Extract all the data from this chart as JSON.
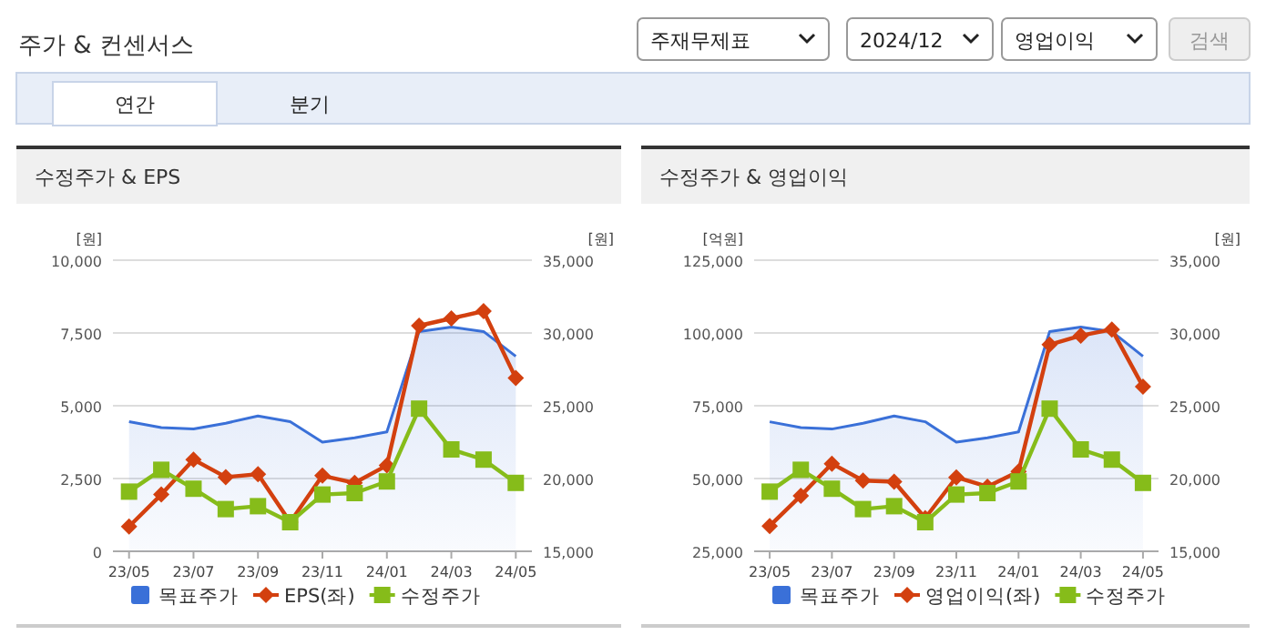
{
  "chart_data": [
    {
      "type": "line",
      "title": "수정주가 & EPS",
      "ylabel": "[원]",
      "y2label": "[원]",
      "annotations": [
        "주가 & 컨센서스",
        "주재무제표",
        "2024/12",
        "영업이익",
        "검색",
        "연간",
        "분기"
      ],
      "categories": [
        "23/05",
        null,
        "23/07",
        null,
        "23/09",
        null,
        "23/11",
        null,
        "24/01",
        null,
        "24/03",
        null,
        "24/05"
      ],
      "ylim": [
        0,
        10000
      ],
      "yticks": [
        {
          "value": 0,
          "label": "0"
        },
        {
          "value": 2500,
          "label": "2,500"
        },
        {
          "value": 5000,
          "label": "5,000"
        },
        {
          "value": 7500,
          "label": "7,500"
        },
        {
          "value": 10000,
          "label": "10,000"
        }
      ],
      "y2lim": [
        15000,
        35000
      ],
      "y2ticks": [
        {
          "value": 15000,
          "label": "15,000"
        },
        {
          "value": 20000,
          "label": "20,000"
        },
        {
          "value": 25000,
          "label": "25,000"
        },
        {
          "value": 30000,
          "label": "30,000"
        },
        {
          "value": 35000,
          "label": "35,000"
        }
      ],
      "grid": "y",
      "legend": "bottom",
      "series": [
        {
          "name": "목표주가",
          "type": "area",
          "axis": "y2",
          "color": "#3a70d8",
          "marker": "none",
          "values": [
            23900,
            23500,
            23400,
            23800,
            24300,
            23900,
            22500,
            22800,
            23200,
            30100,
            30400,
            30100,
            28400
          ]
        },
        {
          "name": "EPS(좌)",
          "color": "#d3400f",
          "marker": "diamond",
          "values": [
            850,
            1950,
            3150,
            2550,
            2650,
            1000,
            2600,
            2350,
            2950,
            7750,
            8000,
            8250,
            5950
          ]
        },
        {
          "name": "수정주가",
          "axis": "y2",
          "color": "#86bc1a",
          "marker": "square",
          "values": [
            19100,
            20600,
            19300,
            17900,
            18100,
            17000,
            18900,
            19000,
            19800,
            24800,
            22000,
            21300,
            19700
          ]
        }
      ]
    },
    {
      "type": "line",
      "title": "수정주가 & 영업이익",
      "ylabel": "[억원]",
      "y2label": "[원]",
      "categories": [
        "23/05",
        null,
        "23/07",
        null,
        "23/09",
        null,
        "23/11",
        null,
        "24/01",
        null,
        "24/03",
        null,
        "24/05"
      ],
      "ylim": [
        25000,
        125000
      ],
      "yticks": [
        {
          "value": 25000,
          "label": "25,000"
        },
        {
          "value": 50000,
          "label": "50,000"
        },
        {
          "value": 75000,
          "label": "75,000"
        },
        {
          "value": 100000,
          "label": "100,000"
        },
        {
          "value": 125000,
          "label": "125,000"
        }
      ],
      "y2lim": [
        15000,
        35000
      ],
      "y2ticks": [
        {
          "value": 15000,
          "label": "15,000"
        },
        {
          "value": 20000,
          "label": "20,000"
        },
        {
          "value": 25000,
          "label": "25,000"
        },
        {
          "value": 30000,
          "label": "30,000"
        },
        {
          "value": 35000,
          "label": "35,000"
        }
      ],
      "grid": "y",
      "legend": "bottom",
      "series": [
        {
          "name": "목표주가",
          "type": "area",
          "axis": "y2",
          "color": "#3a70d8",
          "marker": "none",
          "values": [
            23900,
            23500,
            23400,
            23800,
            24300,
            23900,
            22500,
            22800,
            23200,
            30100,
            30400,
            30100,
            28400
          ]
        },
        {
          "name": "영업이익(좌)",
          "color": "#d3400f",
          "marker": "diamond",
          "values": [
            33700,
            44100,
            55100,
            49300,
            48900,
            36400,
            50400,
            47200,
            52400,
            96000,
            99100,
            101200,
            81600
          ]
        },
        {
          "name": "수정주가",
          "axis": "y2",
          "color": "#86bc1a",
          "marker": "square",
          "values": [
            19100,
            20600,
            19300,
            17900,
            18100,
            17000,
            18900,
            19000,
            19800,
            24800,
            22000,
            21300,
            19700
          ]
        }
      ]
    }
  ]
}
